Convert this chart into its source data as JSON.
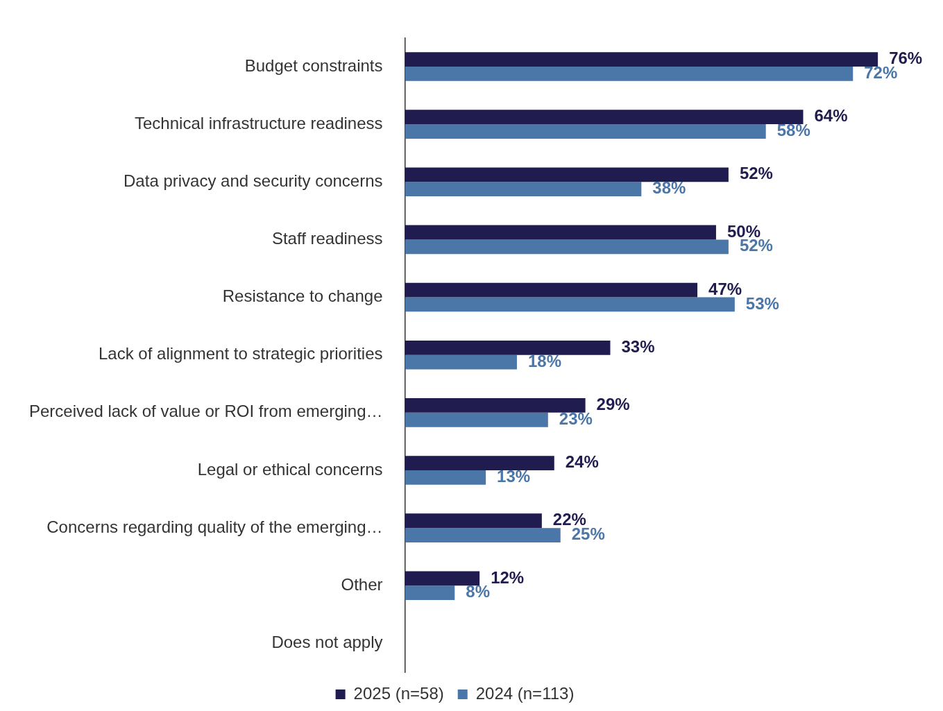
{
  "chart_data": {
    "type": "bar",
    "orientation": "horizontal",
    "categories": [
      "Budget constraints",
      "Technical infrastructure readiness",
      "Data privacy and security concerns",
      "Staff readiness",
      "Resistance to change",
      "Lack of alignment to strategic priorities",
      "Perceived lack of value or ROI from emerging…",
      "Legal or ethical concerns",
      "Concerns regarding quality of the emerging…",
      "Other",
      "Does not apply"
    ],
    "series": [
      {
        "name": "2025 (n=58)",
        "color": "#211c4f",
        "values": [
          76,
          64,
          52,
          50,
          47,
          33,
          29,
          24,
          22,
          12,
          null
        ],
        "value_labels": [
          "76%",
          "64%",
          "52%",
          "50%",
          "47%",
          "33%",
          "29%",
          "24%",
          "22%",
          "12%",
          null
        ]
      },
      {
        "name": "2024 (n=113)",
        "color": "#4a76a8",
        "values": [
          72,
          58,
          38,
          52,
          53,
          18,
          23,
          13,
          25,
          8,
          null
        ],
        "value_labels": [
          "72%",
          "58%",
          "38%",
          "52%",
          "53%",
          "18%",
          "23%",
          "13%",
          "25%",
          "8%",
          null
        ]
      }
    ],
    "legend": "bottom"
  }
}
